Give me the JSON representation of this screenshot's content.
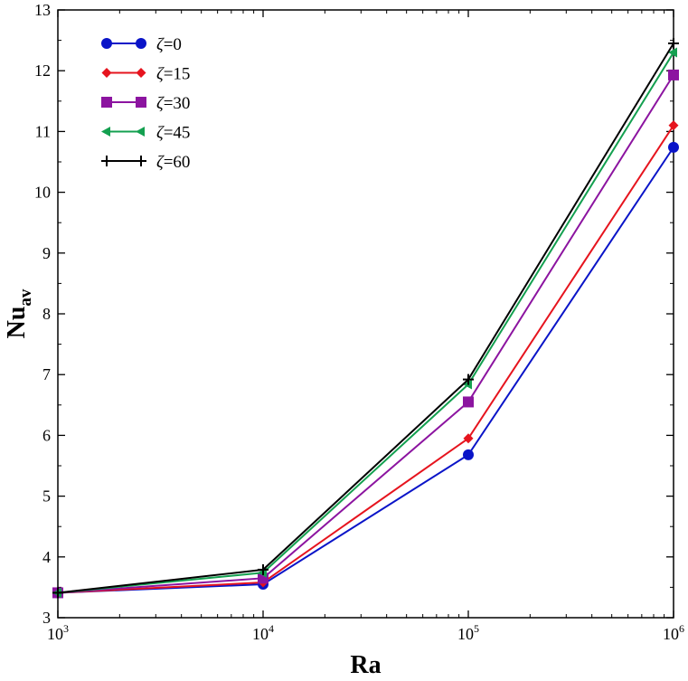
{
  "chart_data": {
    "type": "line",
    "xscale": "log",
    "xlim": [
      1000,
      1000000
    ],
    "ylim": [
      3,
      13
    ],
    "x": [
      1000,
      10000,
      100000,
      1000000
    ],
    "x_tick_labels": [
      {
        "base": "10",
        "exp": "3"
      },
      {
        "base": "10",
        "exp": "4"
      },
      {
        "base": "10",
        "exp": "5"
      },
      {
        "base": "10",
        "exp": "6"
      }
    ],
    "y_ticks": [
      3,
      4,
      5,
      6,
      7,
      8,
      9,
      10,
      11,
      12,
      13
    ],
    "xlabel": "Ra",
    "ylabel": {
      "main": "Nu",
      "sub": "av"
    },
    "legend_position": "top-left",
    "series": [
      {
        "name": "ζ=0",
        "greek": "ζ",
        "rest": "=0",
        "color": "#0a14c8",
        "marker": "circle",
        "values": [
          3.41,
          3.55,
          5.68,
          10.74
        ]
      },
      {
        "name": "ζ=15",
        "greek": "ζ",
        "rest": "=15",
        "color": "#e6141e",
        "marker": "diamond",
        "values": [
          3.41,
          3.58,
          5.95,
          11.1
        ]
      },
      {
        "name": "ζ=30",
        "greek": "ζ",
        "rest": "=30",
        "color": "#8c14a0",
        "marker": "square",
        "values": [
          3.41,
          3.65,
          6.55,
          11.93
        ]
      },
      {
        "name": "ζ=45",
        "greek": "ζ",
        "rest": "=45",
        "color": "#14a050",
        "marker": "triangle",
        "values": [
          3.41,
          3.74,
          6.84,
          12.3
        ]
      },
      {
        "name": "ζ=60",
        "greek": "ζ",
        "rest": "=60",
        "color": "#000000",
        "marker": "plus",
        "values": [
          3.41,
          3.79,
          6.92,
          12.45
        ]
      }
    ]
  }
}
